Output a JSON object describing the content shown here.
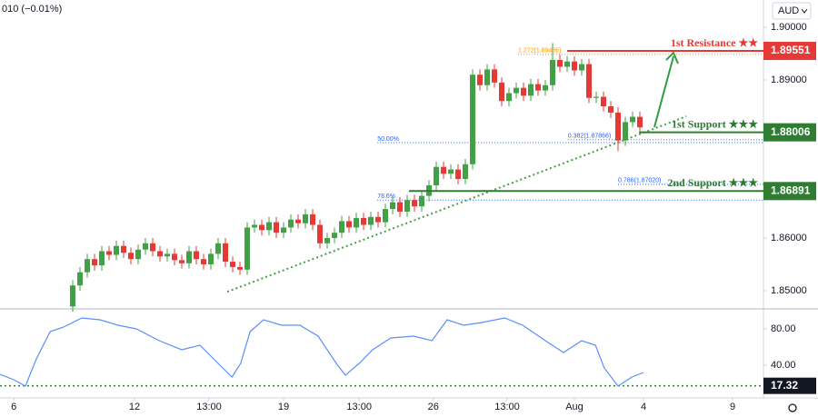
{
  "chart_data": [
    {
      "type": "candlestick",
      "header": "010 (−0.01%)",
      "currency": "AUD",
      "up_color": "#43a047",
      "down_color": "#e53935",
      "xlim": [
        0,
        105
      ],
      "ylim": [
        1.84655,
        1.90517
      ],
      "yticks": [
        {
          "value": 1.9,
          "label": "1.90000"
        },
        {
          "value": 1.89,
          "label": "1.89000"
        },
        {
          "value": 1.86,
          "label": "1.86000"
        },
        {
          "value": 1.85,
          "label": "1.85000"
        }
      ],
      "xticks": [
        {
          "value": 1.9,
          "label": "6"
        },
        {
          "value": 18.5,
          "label": "12"
        },
        {
          "value": 28.75,
          "label": "13:00"
        },
        {
          "value": 39,
          "label": "19"
        },
        {
          "value": 49.4,
          "label": "13:00"
        },
        {
          "value": 59.6,
          "label": "26"
        },
        {
          "value": 69.75,
          "label": "13:00"
        },
        {
          "value": 79,
          "label": "Aug"
        },
        {
          "value": 88.5,
          "label": "4"
        },
        {
          "value": 100.75,
          "label": "9"
        }
      ],
      "x": [
        10,
        11,
        12,
        13,
        14,
        15,
        16,
        17,
        18,
        19,
        20,
        21,
        22,
        23,
        24,
        25,
        26,
        27,
        28,
        29,
        30,
        31,
        32,
        33,
        34,
        35,
        36,
        37,
        38,
        39,
        40,
        41,
        42,
        43,
        44,
        45,
        46,
        47,
        48,
        49,
        50,
        51,
        52,
        53,
        54,
        55,
        56,
        57,
        58,
        59,
        60,
        61,
        62,
        63,
        64,
        65,
        66,
        67,
        68,
        69,
        70,
        71,
        72,
        73,
        74,
        75,
        76,
        77,
        78,
        79,
        80,
        81,
        82,
        83,
        84,
        85,
        86,
        87,
        88
      ],
      "open": [
        1.847,
        1.851,
        1.8535,
        1.856,
        1.8548,
        1.8575,
        1.8568,
        1.8585,
        1.8572,
        1.856,
        1.8578,
        1.859,
        1.8575,
        1.8565,
        1.857,
        1.8558,
        1.8552,
        1.8575,
        1.856,
        1.855,
        1.857,
        1.859,
        1.8555,
        1.8545,
        1.854,
        1.862,
        1.8625,
        1.8615,
        1.863,
        1.861,
        1.862,
        1.8635,
        1.8628,
        1.8645,
        1.8625,
        1.859,
        1.86,
        1.861,
        1.8632,
        1.862,
        1.8638,
        1.8625,
        1.864,
        1.863,
        1.8655,
        1.8668,
        1.865,
        1.8672,
        1.866,
        1.868,
        1.87,
        1.8735,
        1.8722,
        1.873,
        1.8712,
        1.874,
        1.891,
        1.889,
        1.892,
        1.8895,
        1.886,
        1.8875,
        1.8885,
        1.887,
        1.8892,
        1.888,
        1.889,
        1.8938,
        1.8925,
        1.8935,
        1.8918,
        1.893,
        1.8866,
        1.8868,
        1.885,
        1.8838,
        1.8785,
        1.882,
        1.883
      ],
      "high": [
        1.852,
        1.8545,
        1.857,
        1.857,
        1.8585,
        1.8585,
        1.8595,
        1.8595,
        1.8582,
        1.8588,
        1.86,
        1.86,
        1.8585,
        1.858,
        1.858,
        1.8568,
        1.8585,
        1.8585,
        1.857,
        1.858,
        1.86,
        1.86,
        1.8565,
        1.8555,
        1.863,
        1.8635,
        1.8635,
        1.864,
        1.864,
        1.863,
        1.8645,
        1.8645,
        1.8655,
        1.8655,
        1.8635,
        1.861,
        1.862,
        1.8642,
        1.8642,
        1.8648,
        1.8648,
        1.865,
        1.865,
        1.8665,
        1.8678,
        1.8678,
        1.8682,
        1.8682,
        1.869,
        1.871,
        1.8745,
        1.8745,
        1.874,
        1.874,
        1.875,
        1.892,
        1.892,
        1.893,
        1.893,
        1.8905,
        1.8885,
        1.8895,
        1.8895,
        1.8902,
        1.8902,
        1.89,
        1.897,
        1.8948,
        1.8945,
        1.8945,
        1.894,
        1.894,
        1.8878,
        1.8878,
        1.886,
        1.8848,
        1.883,
        1.884,
        1.884
      ],
      "low": [
        1.846,
        1.85,
        1.8525,
        1.8538,
        1.8538,
        1.8558,
        1.8558,
        1.8562,
        1.855,
        1.855,
        1.8568,
        1.8565,
        1.8555,
        1.8555,
        1.8548,
        1.8542,
        1.8542,
        1.855,
        1.854,
        1.854,
        1.856,
        1.8545,
        1.8535,
        1.853,
        1.853,
        1.861,
        1.8605,
        1.8605,
        1.86,
        1.86,
        1.861,
        1.8618,
        1.8618,
        1.8615,
        1.858,
        1.858,
        1.859,
        1.86,
        1.861,
        1.861,
        1.8615,
        1.8615,
        1.862,
        1.862,
        1.8645,
        1.864,
        1.864,
        1.865,
        1.865,
        1.867,
        1.869,
        1.8712,
        1.8712,
        1.8702,
        1.8702,
        1.873,
        1.888,
        1.888,
        1.8885,
        1.885,
        1.885,
        1.8865,
        1.886,
        1.886,
        1.887,
        1.887,
        1.888,
        1.8915,
        1.8915,
        1.8908,
        1.8908,
        1.8856,
        1.8856,
        1.884,
        1.8828,
        1.8765,
        1.8775,
        1.881,
        1.88
      ],
      "close": [
        1.851,
        1.8535,
        1.856,
        1.8548,
        1.8575,
        1.8568,
        1.8585,
        1.8572,
        1.856,
        1.8578,
        1.859,
        1.8575,
        1.8565,
        1.857,
        1.8558,
        1.8552,
        1.8575,
        1.856,
        1.855,
        1.857,
        1.859,
        1.8555,
        1.8545,
        1.854,
        1.862,
        1.8625,
        1.8615,
        1.863,
        1.861,
        1.862,
        1.8635,
        1.8628,
        1.8645,
        1.8625,
        1.859,
        1.86,
        1.861,
        1.8632,
        1.862,
        1.8638,
        1.8625,
        1.864,
        1.863,
        1.8655,
        1.8668,
        1.865,
        1.8672,
        1.866,
        1.868,
        1.87,
        1.8735,
        1.8722,
        1.873,
        1.8712,
        1.874,
        1.891,
        1.889,
        1.892,
        1.8895,
        1.886,
        1.8875,
        1.8885,
        1.887,
        1.8892,
        1.888,
        1.889,
        1.8938,
        1.8925,
        1.8935,
        1.8918,
        1.893,
        1.8866,
        1.8868,
        1.885,
        1.8838,
        1.8785,
        1.882,
        1.883,
        1.881
      ],
      "levels": [
        {
          "name": "1st Resistance ★★",
          "value": 1.89551,
          "x_from": 78,
          "color": "#e53935"
        },
        {
          "name": "1st Support ★★★",
          "value": 1.88006,
          "x_from": 87.9,
          "color": "#2e7d32"
        },
        {
          "name": "2nd Support ★★★",
          "value": 1.86891,
          "x_from": 56.25,
          "color": "#2e7d32"
        }
      ],
      "fibs": [
        {
          "label": "1.272(1.89486)",
          "value": 1.89486,
          "x_from": 71.25,
          "color": "#ff9800"
        },
        {
          "label": "50.00%",
          "value": 1.8781,
          "x_from": 51.9,
          "color": "#2962ff"
        },
        {
          "label": "0.382(1.87866)",
          "value": 1.87866,
          "x_from": 78.1,
          "color": "#2962ff"
        },
        {
          "label": "0.786(1.87020)",
          "value": 1.8702,
          "x_from": 85,
          "color": "#2962ff"
        },
        {
          "label": "78.6%",
          "value": 1.8672,
          "x_from": 51.9,
          "color": "#2962ff"
        }
      ],
      "trendline": {
        "x": [
          31.25,
          94.4
        ],
        "y": [
          1.8498,
          1.8831
        ],
        "color": "#43a047"
      }
    },
    {
      "type": "line",
      "color": "#5b8ff9",
      "xlim": [
        0,
        105
      ],
      "ylim": [
        4,
        102
      ],
      "yticks": [
        {
          "value": 80,
          "label": "80.00"
        },
        {
          "value": 40,
          "label": "40.00"
        }
      ],
      "ref_line": 17.32,
      "x": [
        0,
        1.9,
        3.5,
        5,
        6.9,
        8.75,
        11.25,
        13.75,
        16.25,
        18.75,
        21.9,
        25,
        27.5,
        30,
        31.9,
        33.1,
        34.4,
        36.25,
        38.75,
        41.25,
        43.75,
        46.25,
        47.5,
        49.4,
        51.25,
        53.75,
        56.9,
        59.4,
        61.5,
        63.75,
        66.25,
        69.4,
        71.9,
        75,
        77.5,
        80,
        81.9,
        83.1,
        85,
        86.9,
        88.5
      ],
      "values": [
        30,
        24,
        17,
        47,
        77,
        82,
        92,
        90,
        84,
        80,
        67,
        57,
        62,
        42,
        27,
        42,
        77,
        90,
        84,
        84,
        72,
        42,
        29,
        42,
        57,
        70,
        72,
        67,
        90,
        84,
        87,
        92,
        84,
        67,
        54,
        67,
        62,
        37,
        17,
        27,
        32
      ]
    }
  ]
}
